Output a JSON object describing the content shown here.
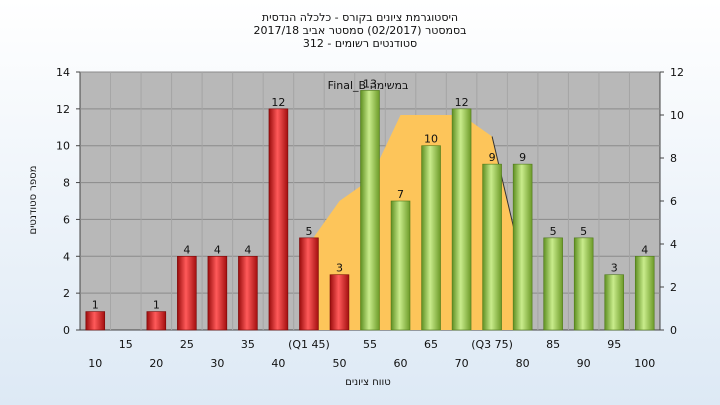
{
  "chart_data": {
    "type": "bar",
    "title_lines": [
      "היסטוגרמת ציונים בקורס - כלכלה הנדסית",
      "בסמסטר  (02/2017)  סמסטר אביב 2017/18",
      "סטודנטים רשומים - 312"
    ],
    "xlabel": "טווח ציונים",
    "ylabel": "מספר סטודנטים",
    "overlay_label": "Final_B במשימה",
    "ylim": [
      0,
      14
    ],
    "y_ticks": [
      0,
      2,
      4,
      6,
      8,
      10,
      12,
      14
    ],
    "y2lim": [
      0,
      12
    ],
    "y2_ticks": [
      0,
      2,
      4,
      6,
      8,
      10,
      12
    ],
    "categories": [
      "10",
      "15",
      "20",
      "25",
      "30",
      "35",
      "40",
      "(Q1 45)",
      "50",
      "55",
      "60",
      "65",
      "70",
      "(Q3 75)",
      "80",
      "85",
      "90",
      "95",
      "100"
    ],
    "values": [
      1,
      0,
      1,
      4,
      4,
      4,
      12,
      5,
      3,
      13,
      7,
      10,
      12,
      9,
      9,
      5,
      5,
      3,
      4
    ],
    "data_labels": [
      "1",
      "",
      "1",
      "4",
      "4",
      "4",
      "12",
      "5",
      "3",
      "13",
      "7",
      "10",
      "12",
      "9",
      "9",
      "5",
      "5",
      "3",
      "4"
    ],
    "series_colors": {
      "below_median": "#e41e1e",
      "above_median": "#8cc43c"
    },
    "bar_color_group": [
      "red",
      "red",
      "red",
      "red",
      "red",
      "red",
      "red",
      "red",
      "red",
      "green",
      "green",
      "green",
      "green",
      "green",
      "green",
      "green",
      "green",
      "green",
      "green"
    ],
    "area_series": {
      "color": "#fdc55a",
      "x": [
        "(Q1 45)",
        "50",
        "55",
        "60",
        "65",
        "70",
        "(Q3 75)",
        "80"
      ],
      "values": [
        4,
        6,
        7,
        10,
        10,
        10,
        9,
        3
      ]
    },
    "plot_background": "#b8b8b8",
    "grid": true,
    "legend": "none"
  }
}
